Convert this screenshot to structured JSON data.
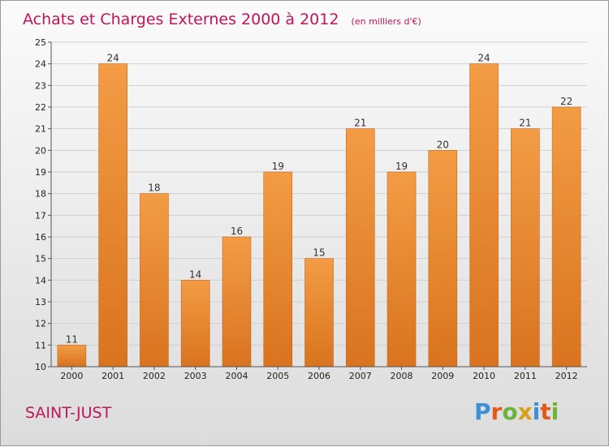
{
  "chart_data": {
    "type": "bar",
    "title": "Achats et Charges Externes 2000 à 2012",
    "unit": "(en milliers d'€)",
    "categories": [
      "2000",
      "2001",
      "2002",
      "2003",
      "2004",
      "2005",
      "2006",
      "2007",
      "2008",
      "2009",
      "2010",
      "2011",
      "2012"
    ],
    "values": [
      11,
      24,
      18,
      14,
      16,
      19,
      15,
      21,
      19,
      20,
      24,
      21,
      22
    ],
    "ylim": [
      10,
      25
    ],
    "yticks": [
      10,
      11,
      12,
      13,
      14,
      15,
      16,
      17,
      18,
      19,
      20,
      21,
      22,
      23,
      24,
      25
    ],
    "grid": true,
    "bar_color": "#f39c45",
    "bar_color_dark": "#d9731f"
  },
  "commune": "SAINT-JUST",
  "logo": {
    "letters": [
      "P",
      "r",
      "o",
      "x",
      "i",
      "t",
      "i"
    ],
    "colors": [
      "#3d8fd6",
      "#e05a1c",
      "#6ab43c",
      "#d6a21c",
      "#3d8fd6",
      "#e05a1c",
      "#6ab43c"
    ]
  }
}
